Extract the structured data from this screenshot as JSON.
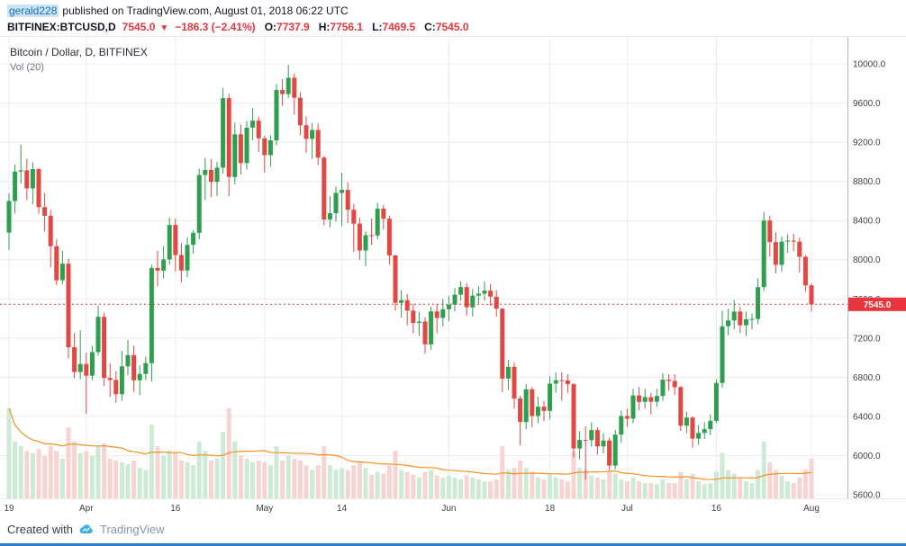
{
  "header": {
    "username": "gerald228",
    "published": "published on TradingView.com, August 01, 2018 06:22 UTC"
  },
  "legend": {
    "symbol": "BITFINEX:BTCUSD,",
    "interval": "D",
    "price": "7545.0",
    "direction_icon": "▼",
    "change": "−186.3 (−2.41%)",
    "ohlc": [
      {
        "label": "O:",
        "value": "7737.9"
      },
      {
        "label": "H:",
        "value": "7756.1"
      },
      {
        "label": "L:",
        "value": "7469.5"
      },
      {
        "label": "C:",
        "value": "7545.0"
      }
    ]
  },
  "chart": {
    "title": "Bitcoin / Dollar, D, BITFINEX",
    "indicator": "Vol (20)"
  },
  "footer": {
    "created_with": "Created with",
    "brand": "TradingView"
  },
  "colors": {
    "up": "#2f9e4f",
    "down": "#e14743",
    "vol_up": "#cdead6",
    "vol_down": "#f7d4d2",
    "vol_ma": "#f59123",
    "last": "#e8353e",
    "accent_blue": "#176fae",
    "bottom_bar_blue": "#2a7fc9",
    "grid": "#ececec"
  },
  "chart_data": {
    "type": "candlestick",
    "title": "Bitcoin / Dollar, D, BITFINEX",
    "symbol": "BITFINEX:BTCUSD",
    "interval": "D",
    "indicator": "Vol (20)",
    "x_axis_note": "daily candles, Mar 19 2018 - Aug 01 2018",
    "grid": true,
    "y_axis_side": "right",
    "ylim": [
      5600,
      10000
    ],
    "y_ticks": [
      10000,
      9600,
      9200,
      8800,
      8400,
      8000,
      7600,
      7200,
      6800,
      6400,
      6000,
      5600
    ],
    "x_ticks": [
      {
        "i": 0,
        "label": "19"
      },
      {
        "i": 13,
        "label": "Apr"
      },
      {
        "i": 28,
        "label": "16"
      },
      {
        "i": 43,
        "label": "May"
      },
      {
        "i": 56,
        "label": "14"
      },
      {
        "i": 74,
        "label": "Jun"
      },
      {
        "i": 91,
        "label": "18"
      },
      {
        "i": 104,
        "label": "Jul"
      },
      {
        "i": 119,
        "label": "16"
      },
      {
        "i": 135,
        "label": "Aug"
      }
    ],
    "last_price": 7545.0,
    "volume_ma_period": 20,
    "open": [
      8277,
      8600,
      8900,
      8912,
      8728,
      8925,
      8537,
      8449,
      8138,
      7790,
      7960,
      7106,
      6853,
      6935,
      6816,
      7057,
      7417,
      6792,
      6772,
      6627,
      6911,
      7026,
      6770,
      6834,
      6944,
      7916,
      7889,
      8003,
      8355,
      8048,
      7890,
      8152,
      8274,
      8866,
      8917,
      8795,
      8940,
      9650,
      8845,
      9281,
      8987,
      9348,
      9419,
      9240,
      9067,
      9219,
      9734,
      9692,
      9858,
      9654,
      9373,
      9234,
      9325,
      9043,
      8411,
      8475,
      8683,
      8713,
      8510,
      8368,
      8094,
      8250,
      8247,
      8522,
      8418,
      8043,
      7559,
      7587,
      7480,
      7355,
      7368,
      7135,
      7472,
      7406,
      7494,
      7541,
      7643,
      7720,
      7514,
      7633,
      7653,
      7684,
      7622,
      7500,
      6786,
      6906,
      6583,
      6343,
      6677,
      6404,
      6499,
      6456,
      6734,
      6769,
      6767,
      6729,
      6072,
      6159,
      6157,
      6260,
      6093,
      6153,
      5898,
      6214,
      6404,
      6377,
      6614,
      6548,
      6597,
      6550,
      6609,
      6775,
      6762,
      6699,
      6305,
      6388,
      6173,
      6231,
      6270,
      6355,
      6741,
      7320,
      7380,
      7470,
      7330,
      7392,
      7395,
      7720,
      8400,
      8180,
      7948,
      8185,
      8195,
      8185,
      8030,
      7737.9
    ],
    "high": [
      8680,
      8970,
      9177,
      9030,
      8995,
      8940,
      8680,
      8510,
      8210,
      8090,
      8010,
      7250,
      7280,
      7050,
      7120,
      7530,
      7460,
      6940,
      6860,
      7070,
      7180,
      7120,
      6920,
      7010,
      7950,
      8090,
      8140,
      8430,
      8420,
      8170,
      8230,
      8300,
      8930,
      9040,
      9025,
      9000,
      9755,
      9695,
      9400,
      9380,
      9415,
      9550,
      9460,
      9265,
      9270,
      9795,
      9845,
      9990,
      9900,
      9710,
      9465,
      9395,
      9390,
      9060,
      8650,
      8750,
      8890,
      8790,
      8570,
      8430,
      8290,
      8420,
      8580,
      8560,
      8450,
      8050,
      7690,
      7650,
      7550,
      7470,
      7410,
      7520,
      7550,
      7600,
      7630,
      7710,
      7780,
      7760,
      7700,
      7730,
      7780,
      7750,
      7690,
      7510,
      6980,
      6950,
      6610,
      6730,
      6700,
      6600,
      6560,
      6810,
      6850,
      6850,
      6830,
      6740,
      6250,
      6300,
      6340,
      6290,
      6230,
      6180,
      6260,
      6460,
      6480,
      6680,
      6700,
      6680,
      6640,
      6680,
      6840,
      6830,
      6830,
      6710,
      6450,
      6400,
      6310,
      6340,
      6420,
      6780,
      7480,
      7500,
      7590,
      7520,
      7470,
      7450,
      7810,
      8490,
      8450,
      8280,
      8240,
      8260,
      8265,
      8225,
      8047,
      7756.1
    ],
    "low": [
      8100,
      8470,
      8777,
      8610,
      8565,
      8470,
      8290,
      7920,
      7740,
      7750,
      6990,
      6790,
      6780,
      6425,
      6770,
      7020,
      6710,
      6600,
      6540,
      6560,
      6820,
      6650,
      6620,
      6770,
      6756,
      7730,
      7810,
      7950,
      7880,
      7770,
      7820,
      8060,
      8210,
      8610,
      8640,
      8650,
      8880,
      8650,
      8770,
      8870,
      8920,
      9220,
      9100,
      8890,
      8950,
      9170,
      9570,
      9650,
      9480,
      9270,
      9090,
      9030,
      8970,
      8350,
      8330,
      8390,
      8340,
      8370,
      8080,
      8000,
      7930,
      8150,
      8210,
      8310,
      7950,
      7480,
      7410,
      7330,
      7250,
      7220,
      7040,
      7080,
      7250,
      7320,
      7370,
      7470,
      7580,
      7430,
      7420,
      7550,
      7580,
      7530,
      7420,
      6647,
      6670,
      6480,
      6105,
      6270,
      6290,
      6330,
      6350,
      6370,
      6640,
      6560,
      6640,
      5980,
      5960,
      5755,
      6090,
      6010,
      6020,
      5850,
      5860,
      6130,
      6290,
      6330,
      6460,
      6480,
      6420,
      6500,
      6560,
      6660,
      6620,
      6250,
      6230,
      6080,
      6110,
      6170,
      6210,
      6330,
      6690,
      7230,
      7290,
      7250,
      7220,
      7290,
      7340,
      7680,
      8030,
      7860,
      7880,
      8070,
      8090,
      7870,
      7672,
      7469.5
    ],
    "close": [
      8600,
      8900,
      8912,
      8728,
      8925,
      8537,
      8449,
      8138,
      7790,
      7960,
      7106,
      6853,
      6935,
      6816,
      7057,
      7417,
      6792,
      6772,
      6627,
      6911,
      7026,
      6770,
      6834,
      6944,
      7916,
      7889,
      8003,
      8355,
      8048,
      7890,
      8152,
      8274,
      8866,
      8917,
      8795,
      8940,
      9650,
      8845,
      9281,
      8987,
      9348,
      9419,
      9240,
      9067,
      9219,
      9734,
      9692,
      9858,
      9654,
      9373,
      9234,
      9325,
      9043,
      8411,
      8475,
      8683,
      8713,
      8510,
      8368,
      8094,
      8250,
      8247,
      8522,
      8418,
      8043,
      7559,
      7587,
      7480,
      7355,
      7368,
      7135,
      7472,
      7406,
      7494,
      7541,
      7643,
      7720,
      7514,
      7633,
      7653,
      7684,
      7622,
      7500,
      6786,
      6906,
      6583,
      6343,
      6677,
      6404,
      6499,
      6456,
      6734,
      6769,
      6767,
      6729,
      6072,
      6159,
      6157,
      6260,
      6093,
      6153,
      5898,
      6214,
      6404,
      6377,
      6614,
      6548,
      6597,
      6550,
      6609,
      6775,
      6762,
      6699,
      6305,
      6388,
      6173,
      6231,
      6270,
      6355,
      6741,
      7320,
      7380,
      7470,
      7330,
      7392,
      7395,
      7720,
      8400,
      8180,
      7948,
      8185,
      8195,
      8185,
      8030,
      7737.9,
      7545.0
    ],
    "volume": [
      95,
      60,
      55,
      50,
      48,
      52,
      45,
      55,
      50,
      42,
      75,
      60,
      48,
      50,
      45,
      55,
      58,
      42,
      40,
      38,
      36,
      40,
      32,
      30,
      78,
      55,
      45,
      50,
      48,
      40,
      38,
      35,
      60,
      50,
      40,
      42,
      70,
      95,
      60,
      45,
      42,
      38,
      40,
      38,
      35,
      55,
      40,
      45,
      42,
      40,
      35,
      30,
      35,
      55,
      35,
      30,
      32,
      30,
      35,
      38,
      32,
      25,
      28,
      26,
      35,
      50,
      30,
      28,
      25,
      22,
      28,
      30,
      24,
      22,
      24,
      22,
      20,
      24,
      22,
      20,
      18,
      18,
      20,
      55,
      30,
      32,
      40,
      32,
      28,
      22,
      20,
      26,
      22,
      20,
      18,
      50,
      32,
      30,
      24,
      22,
      20,
      28,
      26,
      20,
      18,
      22,
      18,
      16,
      16,
      15,
      20,
      16,
      16,
      28,
      20,
      26,
      18,
      15,
      16,
      28,
      48,
      30,
      26,
      22,
      18,
      16,
      30,
      60,
      38,
      30,
      24,
      18,
      16,
      22,
      30,
      42
    ]
  }
}
